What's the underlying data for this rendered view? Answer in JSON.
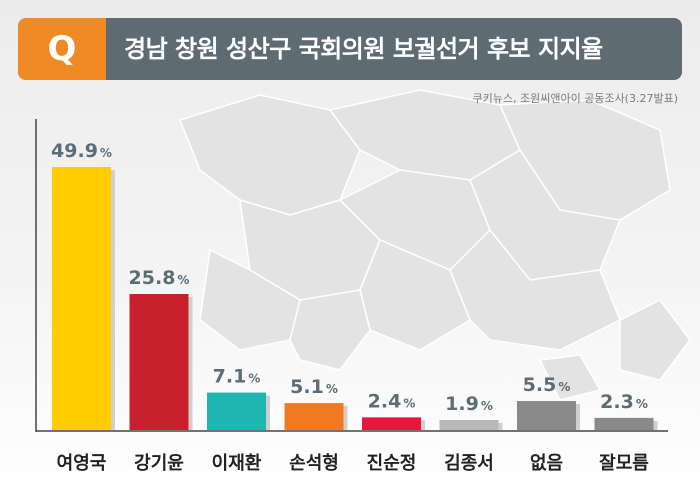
{
  "header": {
    "badge": "Q",
    "title": "경남 창원 성산구 국회의원 보궐선거 후보 지지율"
  },
  "source": "쿠키뉴스, 조원씨앤아이 공동조사(3.27발표)",
  "colors": {
    "header_bg": "#5f6b72",
    "badge_bg": "#f08a24",
    "label_text": "#5a6e7a"
  },
  "chart_data": {
    "type": "bar",
    "title": "경남 창원 성산구 국회의원 보궐선거 후보 지지율",
    "categories": [
      "여영국",
      "강기윤",
      "이재환",
      "손석형",
      "진순정",
      "김종서",
      "없음",
      "잘모름"
    ],
    "values": [
      49.9,
      25.8,
      7.1,
      5.1,
      2.4,
      1.9,
      5.5,
      2.3
    ],
    "unit": "%",
    "bar_colors": [
      "#ffcc00",
      "#c8202c",
      "#1fb5b0",
      "#f07a22",
      "#e8163c",
      "#b8b8b8",
      "#8a8a8a",
      "#8a8a8a"
    ],
    "ylim": [
      0,
      50
    ],
    "grid": false,
    "legend": "none"
  }
}
